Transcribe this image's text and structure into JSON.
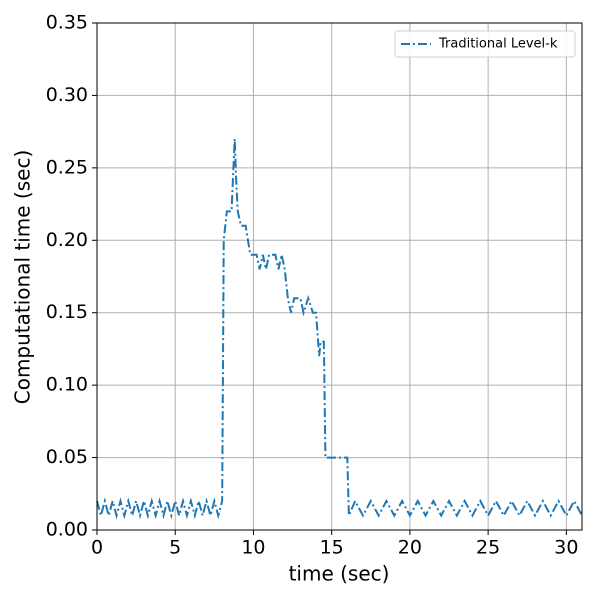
{
  "chart_data": {
    "type": "line",
    "x_label": "time (sec)",
    "y_label": "Computational time (sec)",
    "x": [
      0,
      0.25,
      0.5,
      0.75,
      1,
      1.25,
      1.5,
      1.75,
      2,
      2.25,
      2.5,
      2.75,
      3,
      3.25,
      3.5,
      3.75,
      4,
      4.25,
      4.5,
      4.75,
      5,
      5.25,
      5.5,
      5.75,
      6,
      6.25,
      6.5,
      6.75,
      7,
      7.25,
      7.5,
      7.75,
      8,
      8.1,
      8.3,
      8.6,
      8.8,
      8.9,
      9,
      9.2,
      9.5,
      9.8,
      10.2,
      10.4,
      10.6,
      10.8,
      11,
      11.4,
      11.6,
      11.8,
      12,
      12.2,
      12.4,
      12.6,
      13,
      13.2,
      13.5,
      13.8,
      14,
      14.2,
      14.3,
      14.5,
      14.6,
      15,
      16,
      16.1,
      16.5,
      17,
      17.5,
      18,
      18.5,
      19,
      19.5,
      20,
      20.5,
      21,
      21.5,
      22,
      22.5,
      23,
      23.5,
      24,
      24.5,
      25,
      25.5,
      26,
      26.5,
      27,
      27.5,
      28,
      28.5,
      29,
      29.5,
      30,
      30.5,
      31
    ],
    "series": [
      {
        "name": "Traditional Level-k",
        "color": "#1f77b4",
        "values": [
          0.02,
          0.01,
          0.02,
          0.01,
          0.02,
          0.01,
          0.02,
          0.01,
          0.02,
          0.01,
          0.02,
          0.01,
          0.02,
          0.01,
          0.02,
          0.01,
          0.02,
          0.01,
          0.02,
          0.01,
          0.02,
          0.01,
          0.02,
          0.01,
          0.02,
          0.01,
          0.02,
          0.01,
          0.02,
          0.01,
          0.02,
          0.01,
          0.02,
          0.2,
          0.22,
          0.22,
          0.27,
          0.24,
          0.22,
          0.21,
          0.21,
          0.19,
          0.19,
          0.18,
          0.19,
          0.18,
          0.19,
          0.19,
          0.18,
          0.19,
          0.18,
          0.16,
          0.15,
          0.16,
          0.16,
          0.15,
          0.16,
          0.15,
          0.15,
          0.12,
          0.13,
          0.13,
          0.05,
          0.05,
          0.05,
          0.01,
          0.02,
          0.01,
          0.02,
          0.01,
          0.02,
          0.01,
          0.02,
          0.01,
          0.02,
          0.01,
          0.02,
          0.01,
          0.02,
          0.01,
          0.02,
          0.01,
          0.02,
          0.01,
          0.02,
          0.01,
          0.02,
          0.01,
          0.02,
          0.01,
          0.02,
          0.01,
          0.02,
          0.01,
          0.02,
          0.01
        ]
      }
    ],
    "xlim": [
      0,
      31
    ],
    "ylim": [
      0,
      0.35
    ],
    "xticks": [
      0,
      5,
      10,
      15,
      20,
      25,
      30
    ],
    "yticks": [
      {
        "value": 0,
        "label": "0.00"
      },
      {
        "value": 0.05,
        "label": "0.05"
      },
      {
        "value": 0.1,
        "label": "0.10"
      },
      {
        "value": 0.15,
        "label": "0.15"
      },
      {
        "value": 0.2,
        "label": "0.20"
      },
      {
        "value": 0.25,
        "label": "0.25"
      },
      {
        "value": 0.3,
        "label": "0.30"
      },
      {
        "value": 0.35,
        "label": "0.35"
      }
    ],
    "grid": true,
    "legend": "upper right"
  }
}
